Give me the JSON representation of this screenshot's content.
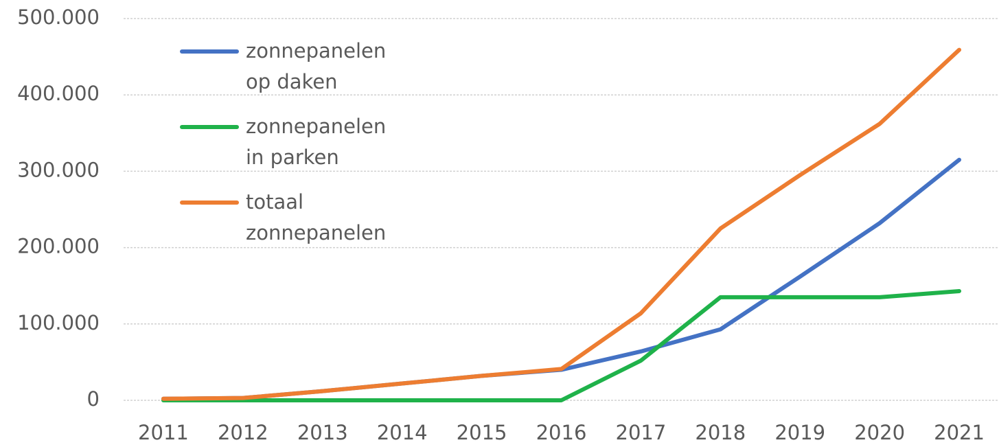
{
  "chart_data": {
    "type": "line",
    "categories": [
      "2011",
      "2012",
      "2013",
      "2014",
      "2015",
      "2016",
      "2017",
      "2018",
      "2019",
      "2020",
      "2021"
    ],
    "series": [
      {
        "name": "zonnepanelen op daken",
        "color": "#4472c4",
        "values": [
          2000,
          3000,
          12000,
          22000,
          32000,
          40000,
          64000,
          93000,
          162000,
          232000,
          315000
        ]
      },
      {
        "name": "zonnepanelen in parken",
        "color": "#1fb24a",
        "values": [
          0,
          0,
          0,
          0,
          0,
          0,
          52000,
          135000,
          135000,
          135000,
          143000
        ]
      },
      {
        "name": "totaal zonnepanelen",
        "color": "#ed7d31",
        "values": [
          2000,
          3000,
          12000,
          22000,
          32000,
          41000,
          114000,
          225000,
          295000,
          362000,
          459000
        ]
      }
    ],
    "ylim": [
      0,
      500000
    ],
    "yticks": [
      0,
      {
        "value": 100000,
        "label": "100.000"
      },
      {
        "value": 200000,
        "label": "200.000"
      },
      {
        "value": 300000,
        "label": "300.000"
      },
      {
        "value": 400000,
        "label": "400.000"
      },
      {
        "value": 500000,
        "label": "500.000"
      }
    ],
    "grid": true,
    "legend": "top-left"
  }
}
